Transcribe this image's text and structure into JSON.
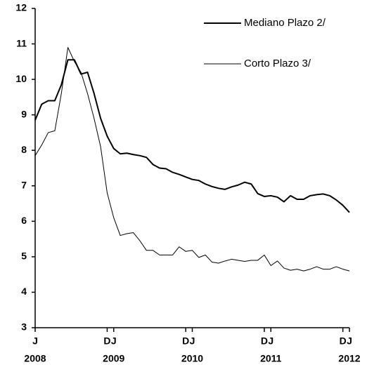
{
  "chart_data": {
    "type": "line",
    "categories": [
      "J",
      null,
      null,
      null,
      null,
      null,
      null,
      null,
      null,
      null,
      null,
      "D",
      "J",
      null,
      null,
      null,
      null,
      null,
      null,
      null,
      null,
      null,
      null,
      "D",
      "J",
      null,
      null,
      null,
      null,
      null,
      null,
      null,
      null,
      null,
      null,
      "D",
      "J",
      null,
      null,
      null,
      null,
      null,
      null,
      null,
      null,
      null,
      null,
      "D",
      "J"
    ],
    "category_years": [
      "2008",
      null,
      null,
      null,
      null,
      null,
      null,
      null,
      null,
      null,
      null,
      null,
      "2009",
      null,
      null,
      null,
      null,
      null,
      null,
      null,
      null,
      null,
      null,
      null,
      "2010",
      null,
      null,
      null,
      null,
      null,
      null,
      null,
      null,
      null,
      null,
      null,
      "2011",
      null,
      null,
      null,
      null,
      null,
      null,
      null,
      null,
      null,
      null,
      null,
      "2012"
    ],
    "series": [
      {
        "name": "Mediano Plazo 2/",
        "color": "#000000",
        "width": 2,
        "values": [
          8.85,
          9.3,
          9.4,
          9.4,
          9.85,
          10.55,
          10.55,
          10.15,
          10.2,
          9.6,
          8.9,
          8.4,
          8.05,
          7.9,
          7.92,
          7.88,
          7.85,
          7.8,
          7.6,
          7.5,
          7.48,
          7.38,
          7.32,
          7.25,
          7.18,
          7.15,
          7.05,
          6.98,
          6.93,
          6.9,
          6.97,
          7.02,
          7.1,
          7.05,
          6.78,
          6.7,
          6.72,
          6.68,
          6.55,
          6.72,
          6.62,
          6.62,
          6.72,
          6.75,
          6.77,
          6.72,
          6.6,
          6.45,
          6.25
        ]
      },
      {
        "name": "Corto Plazo 3/",
        "color": "#000000",
        "width": 1,
        "values": [
          7.85,
          8.15,
          8.5,
          8.55,
          9.6,
          10.9,
          10.5,
          10.2,
          9.6,
          8.9,
          8.1,
          6.8,
          6.1,
          5.6,
          5.65,
          5.68,
          5.45,
          5.18,
          5.18,
          5.05,
          5.05,
          5.05,
          5.28,
          5.15,
          5.18,
          4.98,
          5.05,
          4.85,
          4.82,
          4.88,
          4.93,
          4.9,
          4.87,
          4.9,
          4.9,
          5.05,
          4.75,
          4.88,
          4.68,
          4.62,
          4.65,
          4.6,
          4.65,
          4.72,
          4.65,
          4.65,
          4.72,
          4.65,
          4.6
        ]
      }
    ],
    "ylim": [
      3,
      12
    ],
    "yticks": [
      3,
      4,
      5,
      6,
      7,
      8,
      9,
      10,
      11,
      12
    ],
    "grid": false,
    "legend": "top-right"
  }
}
